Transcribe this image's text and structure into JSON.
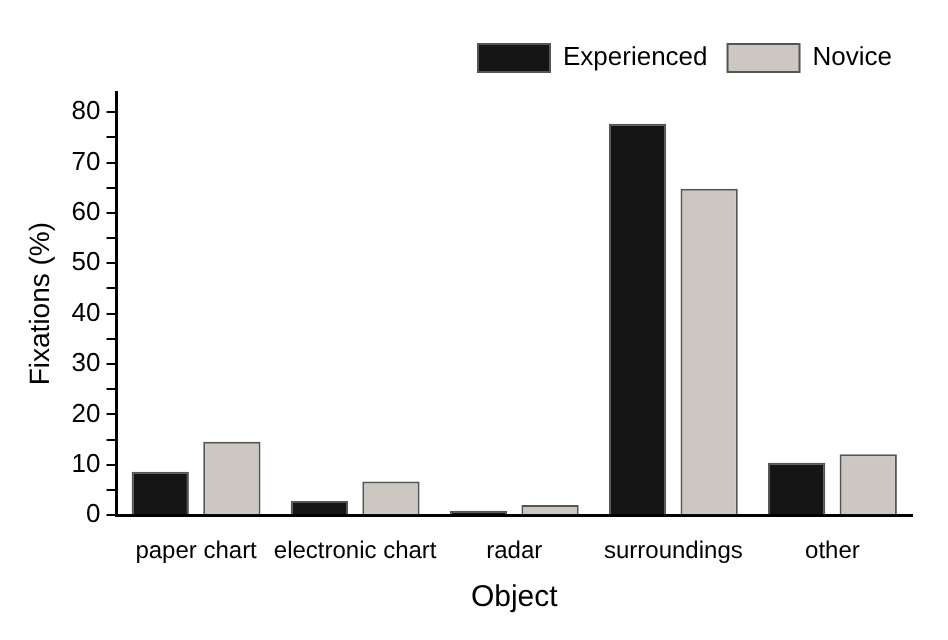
{
  "chart_data": {
    "type": "bar",
    "xlabel": "Object",
    "ylabel": "Fixations (%)",
    "categories": [
      "paper chart",
      "electronic chart",
      "radar",
      "surroundings",
      "other"
    ],
    "series": [
      {
        "name": "Experienced",
        "color": "#151515",
        "values": [
          8.6,
          2.8,
          0.9,
          77.7,
          10.4
        ]
      },
      {
        "name": "Novice",
        "color": "#cdc7c2",
        "values": [
          14.6,
          6.7,
          2.0,
          64.8,
          12.1
        ]
      }
    ],
    "ylim": [
      0,
      84
    ],
    "yticks": [
      0,
      {
        "value": 5,
        "label": null
      },
      10,
      {
        "value": 15,
        "label": null
      },
      20,
      {
        "value": 25,
        "label": null
      },
      30,
      {
        "value": 35,
        "label": null
      },
      40,
      {
        "value": 45,
        "label": null
      },
      50,
      {
        "value": 55,
        "label": null
      },
      60,
      {
        "value": 65,
        "label": null
      },
      70,
      {
        "value": 75,
        "label": null
      },
      80
    ],
    "grid": false,
    "legend": "top right"
  }
}
